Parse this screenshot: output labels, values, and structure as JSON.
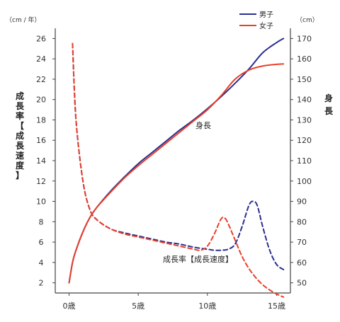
{
  "chart_data": {
    "type": "line",
    "left_axis": {
      "unit": "（cm / 年）",
      "title": "成長率【成長速度】",
      "ticks": [
        2,
        4,
        6,
        8,
        10,
        12,
        14,
        16,
        18,
        20,
        22,
        24,
        26
      ],
      "ylim": [
        1,
        27
      ]
    },
    "right_axis": {
      "unit": "（cm）",
      "title": "身長",
      "ticks": [
        50,
        60,
        70,
        80,
        90,
        100,
        110,
        120,
        130,
        140,
        150,
        160,
        170
      ],
      "ylim": [
        45,
        175
      ]
    },
    "x_axis": {
      "ticks": [
        "0歳",
        "5歳",
        "10歳",
        "15歳"
      ],
      "tick_values": [
        0,
        5,
        10,
        15
      ],
      "xlim": [
        -1,
        16
      ]
    },
    "legend": {
      "position": "top-right",
      "entries": [
        {
          "label": "男子",
          "color": "#2b2f8f"
        },
        {
          "label": "女子",
          "color": "#e8402a"
        }
      ]
    },
    "annotations": {
      "height_label": "身長",
      "velocity_label": "成長率【成長速度】"
    },
    "series": [
      {
        "name": "男子",
        "metric": "身長",
        "axis": "right",
        "style": "solid",
        "color": "#2b2f8f",
        "x": [
          0,
          0.25,
          0.5,
          1,
          1.5,
          2,
          3,
          4,
          5,
          6,
          7,
          8,
          9,
          10,
          11,
          12,
          13,
          14,
          15,
          15.5
        ],
        "y": [
          50,
          60,
          66,
          75,
          82,
          87,
          95,
          102,
          108.5,
          114,
          119.5,
          125,
          130,
          135.5,
          141.5,
          148,
          155,
          163,
          168,
          170
        ]
      },
      {
        "name": "女子",
        "metric": "身長",
        "axis": "right",
        "style": "solid",
        "color": "#e8402a",
        "x": [
          0,
          0.25,
          0.5,
          1,
          1.5,
          2,
          3,
          4,
          5,
          6,
          7,
          8,
          9,
          10,
          11,
          12,
          13,
          14,
          15,
          15.5
        ],
        "y": [
          50,
          60,
          66,
          75,
          82,
          87,
          94.5,
          101.5,
          107.5,
          113,
          118.5,
          124,
          129.5,
          135,
          142,
          150,
          154.5,
          156.5,
          157.3,
          157.5
        ]
      },
      {
        "name": "男子",
        "metric": "成長率【成長速度】",
        "axis": "left",
        "style": "dashed",
        "color": "#2b2f8f",
        "x": [
          0.25,
          0.5,
          1,
          1.5,
          2,
          3,
          4,
          5,
          6,
          7,
          8,
          9,
          10,
          10.5,
          11,
          11.5,
          12,
          12.5,
          13,
          13.3,
          13.6,
          14,
          14.5,
          15,
          15.5
        ],
        "y": [
          25.5,
          18,
          12,
          9.2,
          8.2,
          7.3,
          6.9,
          6.6,
          6.3,
          6.0,
          5.8,
          5.5,
          5.3,
          5.2,
          5.2,
          5.3,
          5.8,
          7.5,
          9.6,
          10.0,
          9.6,
          7.5,
          5.2,
          3.8,
          3.3
        ]
      },
      {
        "name": "女子",
        "metric": "成長率【成長速度】",
        "axis": "left",
        "style": "dashed",
        "color": "#e8402a",
        "x": [
          0.25,
          0.5,
          1,
          1.5,
          2,
          3,
          4,
          5,
          6,
          7,
          8,
          9,
          9.5,
          10,
          10.5,
          11,
          11.3,
          11.6,
          12,
          12.5,
          13,
          13.5,
          14,
          14.5,
          15,
          15.5
        ],
        "y": [
          25.5,
          18,
          12,
          9.2,
          8.2,
          7.3,
          6.8,
          6.5,
          6.2,
          5.9,
          5.6,
          5.3,
          5.2,
          5.6,
          6.8,
          8.3,
          8.3,
          7.5,
          6.2,
          4.6,
          3.4,
          2.5,
          1.8,
          1.3,
          0.9,
          0.6
        ]
      }
    ]
  }
}
